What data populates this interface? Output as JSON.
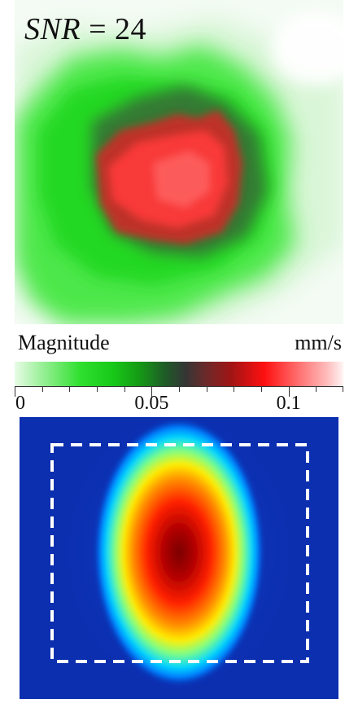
{
  "top_panel": {
    "snr_label": "SNR",
    "snr_equals": "=",
    "snr_value": "24"
  },
  "colorbar": {
    "title": "Magnitude",
    "unit": "mm/s",
    "ticks": [
      {
        "label": "0",
        "value": 0
      },
      {
        "label": "0.05",
        "value": 0.05
      },
      {
        "label": "0.1",
        "value": 0.1
      }
    ],
    "range": [
      0,
      0.12
    ],
    "colors": {
      "low": "#e8fbe6",
      "mid_low": "#2fe02f",
      "mid": "#353535",
      "mid_high": "#ff1010",
      "high": "#fff4f4"
    }
  },
  "bottom_panel": {
    "background_color": "#0c2fb0",
    "colormap": [
      "#00008b",
      "#0050ff",
      "#00c8ff",
      "#40ffb0",
      "#ffff00",
      "#ff8000",
      "#ff0000",
      "#800000"
    ],
    "dashed_box_color": "#ffffff"
  }
}
